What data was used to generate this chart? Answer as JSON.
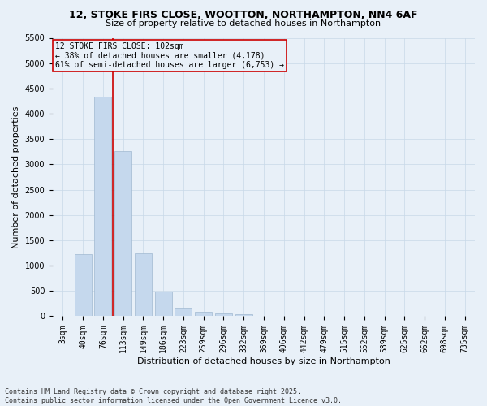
{
  "title_line1": "12, STOKE FIRS CLOSE, WOOTTON, NORTHAMPTON, NN4 6AF",
  "title_line2": "Size of property relative to detached houses in Northampton",
  "xlabel": "Distribution of detached houses by size in Northampton",
  "ylabel": "Number of detached properties",
  "categories": [
    "3sqm",
    "40sqm",
    "76sqm",
    "113sqm",
    "149sqm",
    "186sqm",
    "223sqm",
    "259sqm",
    "296sqm",
    "332sqm",
    "369sqm",
    "406sqm",
    "442sqm",
    "479sqm",
    "515sqm",
    "552sqm",
    "589sqm",
    "625sqm",
    "662sqm",
    "698sqm",
    "735sqm"
  ],
  "values": [
    0,
    1220,
    4330,
    3270,
    1250,
    490,
    175,
    90,
    55,
    40,
    0,
    0,
    0,
    0,
    0,
    0,
    0,
    0,
    0,
    0,
    0
  ],
  "bar_color": "#c5d8ed",
  "bar_edge_color": "#a0b8d0",
  "vline_x_index": 2.5,
  "vline_color": "#cc0000",
  "annotation_line1": "12 STOKE FIRS CLOSE: 102sqm",
  "annotation_line2": "← 38% of detached houses are smaller (4,178)",
  "annotation_line3": "61% of semi-detached houses are larger (6,753) →",
  "ylim_max": 5500,
  "yticks": [
    0,
    500,
    1000,
    1500,
    2000,
    2500,
    3000,
    3500,
    4000,
    4500,
    5000,
    5500
  ],
  "footer_line1": "Contains HM Land Registry data © Crown copyright and database right 2025.",
  "footer_line2": "Contains public sector information licensed under the Open Government Licence v3.0.",
  "grid_color": "#c8d8e8",
  "bg_color": "#e8f0f8",
  "title_fontsize": 9,
  "subtitle_fontsize": 8,
  "annotation_fontsize": 7,
  "ylabel_fontsize": 8,
  "xlabel_fontsize": 8,
  "tick_fontsize": 7,
  "footer_fontsize": 6
}
